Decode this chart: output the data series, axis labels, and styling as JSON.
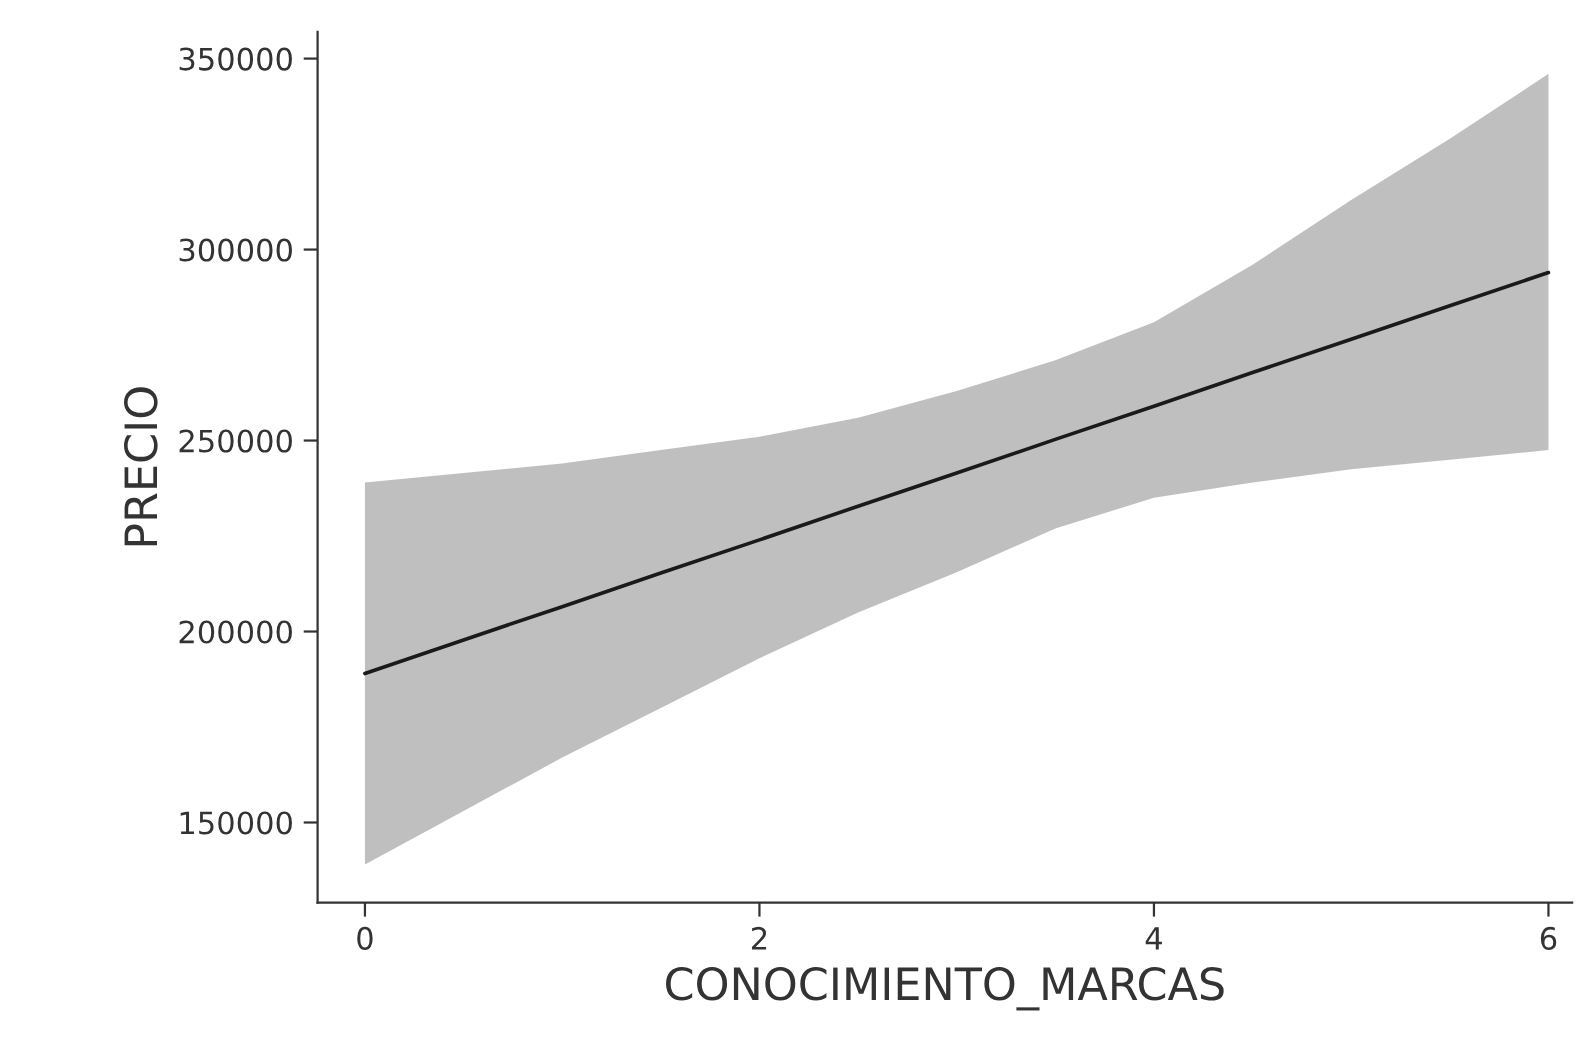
{
  "chart_data": {
    "type": "line",
    "xlabel": "CONOCIMIENTO_MARCAS",
    "ylabel": "PRECIO",
    "xlim": [
      -0.24,
      6.12
    ],
    "xticks": [
      0,
      2,
      4,
      6
    ],
    "ylim": [
      129000,
      357000
    ],
    "yticks": [
      150000,
      200000,
      250000,
      300000,
      350000
    ],
    "grid": false,
    "series": [
      {
        "color": "#1a1a1a",
        "x": [
          0,
          0.5,
          1,
          1.5,
          2,
          2.5,
          3,
          3.5,
          4,
          4.5,
          5,
          5.5,
          6
        ],
        "values": [
          189000,
          197800,
          206500,
          215300,
          224000,
          232800,
          241500,
          250300,
          259000,
          267800,
          276500,
          285300,
          294000
        ],
        "lower": [
          139000,
          153000,
          167000,
          180000,
          193000,
          205000,
          215500,
          227000,
          235000,
          239000,
          242500,
          245000,
          247500
        ],
        "upper": [
          239000,
          241500,
          244000,
          247500,
          251000,
          256000,
          263000,
          271000,
          281000,
          296000,
          313000,
          329000,
          346000
        ]
      }
    ]
  }
}
